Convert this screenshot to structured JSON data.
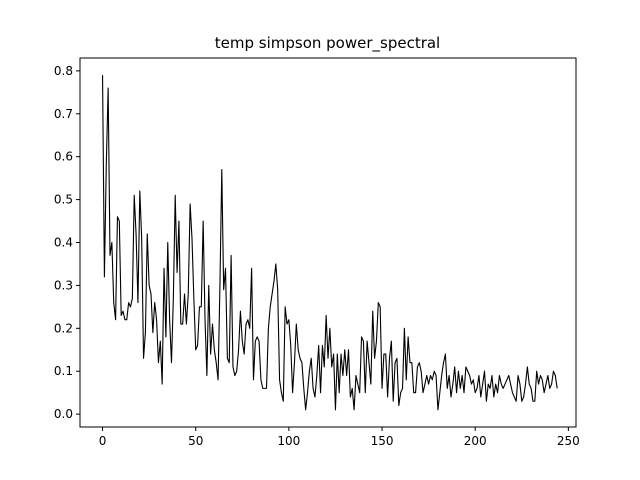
{
  "chart_data": {
    "type": "line",
    "title": "temp simpson power_spectral",
    "xlabel": "",
    "ylabel": "",
    "xlim": [
      -12.1,
      254.1
    ],
    "ylim": [
      -0.03,
      0.83
    ],
    "xticks": [
      0,
      50,
      100,
      150,
      200,
      250
    ],
    "yticks": [
      0.0,
      0.1,
      0.2,
      0.3,
      0.4,
      0.5,
      0.6,
      0.7,
      0.8
    ],
    "xtick_labels": [
      "0",
      "50",
      "100",
      "150",
      "200",
      "250"
    ],
    "ytick_labels": [
      "0.0",
      "0.1",
      "0.2",
      "0.3",
      "0.4",
      "0.5",
      "0.6",
      "0.7",
      "0.8"
    ],
    "grid": false,
    "series": [
      {
        "color": "#000000",
        "x_start": 0,
        "x_step": 1,
        "values": [
          0.79,
          0.32,
          0.58,
          0.76,
          0.37,
          0.4,
          0.26,
          0.22,
          0.46,
          0.45,
          0.23,
          0.24,
          0.22,
          0.22,
          0.26,
          0.25,
          0.27,
          0.51,
          0.42,
          0.26,
          0.52,
          0.41,
          0.13,
          0.19,
          0.42,
          0.3,
          0.28,
          0.19,
          0.26,
          0.22,
          0.12,
          0.17,
          0.07,
          0.34,
          0.18,
          0.4,
          0.22,
          0.12,
          0.27,
          0.51,
          0.33,
          0.45,
          0.21,
          0.21,
          0.28,
          0.21,
          0.28,
          0.49,
          0.41,
          0.27,
          0.15,
          0.16,
          0.25,
          0.25,
          0.45,
          0.22,
          0.09,
          0.3,
          0.14,
          0.21,
          0.15,
          0.12,
          0.08,
          0.3,
          0.57,
          0.29,
          0.34,
          0.13,
          0.12,
          0.37,
          0.11,
          0.09,
          0.1,
          0.15,
          0.24,
          0.17,
          0.14,
          0.21,
          0.22,
          0.2,
          0.34,
          0.08,
          0.17,
          0.18,
          0.17,
          0.08,
          0.06,
          0.06,
          0.06,
          0.2,
          0.25,
          0.28,
          0.31,
          0.35,
          0.29,
          0.08,
          0.05,
          0.03,
          0.25,
          0.21,
          0.22,
          0.16,
          0.05,
          0.12,
          0.21,
          0.15,
          0.13,
          0.12,
          0.06,
          0.01,
          0.05,
          0.1,
          0.13,
          0.06,
          0.04,
          0.09,
          0.16,
          0.05,
          0.16,
          0.11,
          0.23,
          0.13,
          0.2,
          0.11,
          0.14,
          0.01,
          0.14,
          0.05,
          0.14,
          0.09,
          0.15,
          0.09,
          0.15,
          0.04,
          0.06,
          0.01,
          0.09,
          0.07,
          0.05,
          0.18,
          0.17,
          0.05,
          0.17,
          0.12,
          0.07,
          0.24,
          0.13,
          0.17,
          0.26,
          0.25,
          0.06,
          0.14,
          0.14,
          0.04,
          0.13,
          0.17,
          0.03,
          0.12,
          0.13,
          0.02,
          0.05,
          0.06,
          0.2,
          0.08,
          0.18,
          0.12,
          0.12,
          0.05,
          0.05,
          0.11,
          0.12,
          0.1,
          0.05,
          0.07,
          0.09,
          0.07,
          0.09,
          0.08,
          0.1,
          0.09,
          0.01,
          0.05,
          0.09,
          0.12,
          0.14,
          0.06,
          0.09,
          0.04,
          0.07,
          0.11,
          0.05,
          0.1,
          0.06,
          0.09,
          0.05,
          0.11,
          0.1,
          0.09,
          0.07,
          0.08,
          0.05,
          0.06,
          0.09,
          0.04,
          0.07,
          0.1,
          0.03,
          0.07,
          0.06,
          0.09,
          0.04,
          0.07,
          0.05,
          0.09,
          0.07,
          0.06,
          0.07,
          0.08,
          0.09,
          0.07,
          0.05,
          0.04,
          0.03,
          0.09,
          0.07,
          0.03,
          0.04,
          0.07,
          0.11,
          0.07,
          0.06,
          0.03,
          0.03,
          0.1,
          0.07,
          0.09,
          0.08,
          0.05,
          0.07,
          0.09,
          0.06,
          0.07,
          0.1,
          0.09,
          0.06
        ]
      }
    ]
  }
}
